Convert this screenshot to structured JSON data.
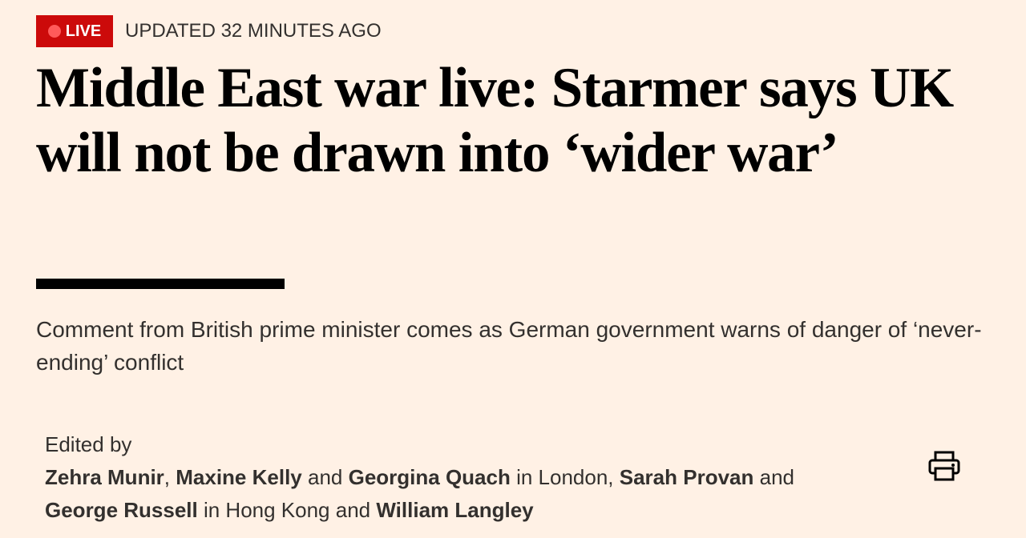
{
  "header": {
    "live_badge": "LIVE",
    "updated": "UPDATED 32 MINUTES AGO"
  },
  "headline": "Middle East war live: Starmer says UK will not be drawn into ‘wider war’",
  "standfirst": "Comment from British prime minister comes as German government warns of danger of ‘never-ending’ conflict",
  "byline": {
    "label": "Edited by",
    "segments": [
      {
        "text": "Zehra Munir",
        "strong": true
      },
      {
        "text": ", ",
        "strong": false
      },
      {
        "text": "Maxine Kelly",
        "strong": true
      },
      {
        "text": " and ",
        "strong": false
      },
      {
        "text": "Georgina Quach",
        "strong": true
      },
      {
        "text": " in London, ",
        "strong": false
      },
      {
        "text": "Sarah Provan",
        "strong": true
      },
      {
        "text": " and ",
        "strong": false
      },
      {
        "text": "George Russell",
        "strong": true
      },
      {
        "text": " in Hong Kong and ",
        "strong": false
      },
      {
        "text": "William Langley",
        "strong": true
      }
    ]
  }
}
